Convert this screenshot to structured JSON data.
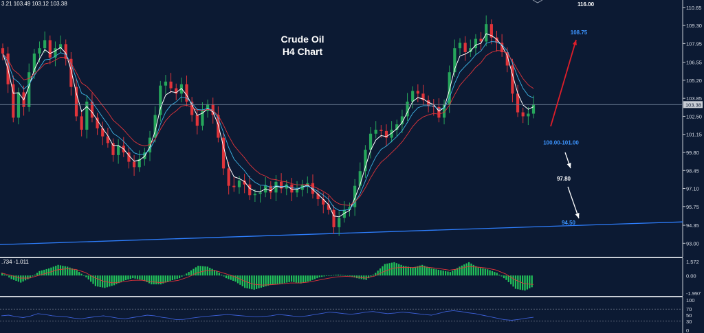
{
  "chart_data": {
    "type": "candlestick",
    "symbol": "Crude Oil",
    "timeframe": "H4",
    "title": "Crude Oil",
    "subtitle": "H4 Chart",
    "ohlc_readout": "3.21 103.49 103.12 103.38",
    "current_price": "103.38",
    "ylim": [
      92.4,
      111.0
    ],
    "price_ticks": [
      "110.65",
      "109.30",
      "107.95",
      "106.55",
      "105.20",
      "103.85",
      "102.50",
      "101.15",
      "99.80",
      "98.45",
      "97.10",
      "95.75",
      "94.35",
      "93.00"
    ],
    "closes": [
      107.2,
      104.9,
      102.4,
      104.3,
      103.2,
      105.8,
      107.2,
      107.6,
      108.2,
      106.9,
      107.6,
      107.9,
      106.8,
      104.7,
      102.5,
      101.5,
      103.6,
      102.4,
      101.6,
      101.0,
      100.5,
      99.6,
      100.3,
      99.8,
      99.1,
      98.7,
      99.3,
      99.8,
      100.9,
      102.6,
      104.8,
      105.1,
      104.6,
      104.2,
      104.9,
      103.6,
      102.6,
      101.8,
      102.9,
      103.4,
      102.6,
      100.9,
      98.6,
      97.3,
      97.2,
      97.7,
      97.4,
      96.6,
      96.7,
      96.8,
      97.3,
      96.8,
      97.6,
      97.1,
      97.4,
      96.8,
      97.0,
      97.4,
      97.5,
      96.7,
      96.3,
      95.9,
      95.5,
      94.2,
      94.9,
      95.5,
      95.7,
      97.3,
      98.4,
      100.0,
      101.2,
      101.5,
      101.4,
      100.9,
      101.5,
      101.9,
      102.5,
      103.6,
      104.4,
      104.2,
      103.7,
      103.3,
      103.2,
      102.4,
      103.4,
      105.8,
      107.6,
      108.0,
      107.3,
      107.6,
      108.3,
      108.1,
      109.4,
      108.4,
      108.0,
      107.3,
      106.3,
      104.2,
      102.8,
      102.5,
      102.7,
      103.4
    ],
    "price_annotations": [
      {
        "label": "116.00",
        "value": 116.0,
        "color": "#ffffff"
      },
      {
        "label": "108.75",
        "value": 108.75,
        "color": "#3d95ff"
      },
      {
        "label": "100.00-101.00",
        "value": 100.5,
        "color": "#3d95ff"
      },
      {
        "label": "97.80",
        "value": 97.8,
        "color": "#ffffff"
      },
      {
        "label": "94.50",
        "value": 94.5,
        "color": "#3d95ff"
      }
    ],
    "trendline": {
      "from_value": 92.9,
      "to_value": 94.6,
      "color": "#2e7fff"
    },
    "macd": {
      "readout": ".734 -1.011",
      "ticks": [
        "1.572",
        "0.00",
        "-1.997"
      ],
      "range": [
        -1.997,
        1.572
      ],
      "histogram_color": "#22c35a",
      "signal_color": "#e0343a",
      "values": [
        0.3,
        -0.4,
        -0.8,
        -0.3,
        0.5,
        0.8,
        1.2,
        1.0,
        0.6,
        -0.2,
        -1.2,
        -1.4,
        -1.1,
        -0.6,
        -0.3,
        -0.5,
        -1.0,
        -1.0,
        -0.6,
        -0.3,
        0.4,
        1.1,
        1.0,
        0.5,
        -0.3,
        -0.7,
        -1.4,
        -1.6,
        -1.3,
        -1.0,
        -0.9,
        -0.7,
        -0.9,
        -0.6,
        -0.2,
        0.0,
        0.1,
        0.0,
        -0.3,
        -0.5,
        0.3,
        1.3,
        1.5,
        1.1,
        0.9,
        1.2,
        0.8,
        0.6,
        0.4,
        1.0,
        1.5,
        0.9,
        0.7,
        0.3,
        -0.5,
        -1.5,
        -1.7,
        -1.2
      ]
    },
    "rsi": {
      "ticks": [
        "100",
        "70",
        "50",
        "30",
        "0"
      ],
      "levels": [
        70,
        30
      ],
      "color": "#3c5fd6",
      "values": [
        48,
        50,
        45,
        42,
        47,
        55,
        52,
        48,
        46,
        44,
        40,
        38,
        42,
        45,
        48,
        44,
        40,
        38,
        42,
        46,
        50,
        48,
        43,
        40,
        35,
        36,
        40,
        43,
        46,
        48,
        50,
        52,
        50,
        48,
        46,
        44,
        46,
        48,
        52,
        50,
        47,
        45,
        48,
        52,
        56,
        60,
        58,
        55,
        53,
        56,
        60,
        62,
        58,
        55,
        57,
        60,
        58,
        55,
        52,
        50,
        56,
        62,
        65,
        62,
        58,
        55,
        50,
        45,
        40,
        35,
        33,
        36,
        40,
        43
      ]
    },
    "colors": {
      "background": "#0c1a33",
      "bull": "#26a65b",
      "bear": "#e0343a",
      "axis_text": "#d8dde6",
      "panel_border": "#c9ced6"
    }
  }
}
